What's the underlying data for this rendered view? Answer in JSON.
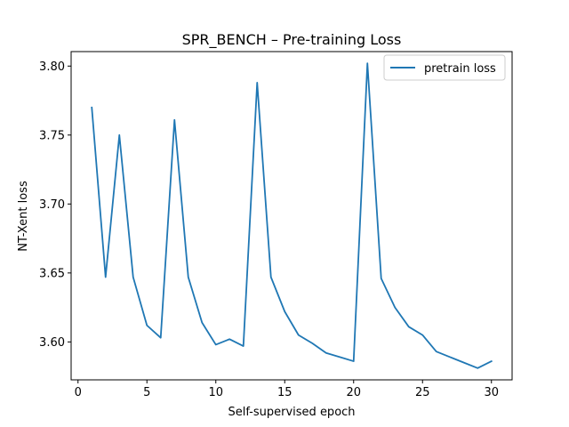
{
  "chart_data": {
    "type": "line",
    "title": "SPR_BENCH – Pre-training Loss",
    "xlabel": "Self-supervised epoch",
    "ylabel": "NT-Xent loss",
    "xlim": [
      -0.5,
      31.5
    ],
    "ylim": [
      3.5725,
      3.8105
    ],
    "xticks": [
      0,
      5,
      10,
      15,
      20,
      25,
      30
    ],
    "yticks": [
      3.6,
      3.65,
      3.7,
      3.75,
      3.8
    ],
    "ytick_labels": [
      "3.60",
      "3.65",
      "3.70",
      "3.75",
      "3.80"
    ],
    "grid": false,
    "legend_position": "top-right",
    "series": [
      {
        "name": "pretrain loss",
        "color": "#1f77b4",
        "x": [
          1,
          2,
          3,
          4,
          5,
          6,
          7,
          8,
          9,
          10,
          11,
          12,
          13,
          14,
          15,
          16,
          17,
          18,
          19,
          20,
          21,
          22,
          23,
          24,
          25,
          26,
          27,
          28,
          29,
          30
        ],
        "y": [
          3.77,
          3.647,
          3.75,
          3.647,
          3.612,
          3.603,
          3.761,
          3.647,
          3.614,
          3.598,
          3.602,
          3.597,
          3.788,
          3.647,
          3.622,
          3.605,
          3.599,
          3.592,
          3.589,
          3.586,
          3.802,
          3.646,
          3.625,
          3.611,
          3.605,
          3.593,
          3.589,
          3.585,
          3.581,
          3.586
        ]
      }
    ]
  }
}
